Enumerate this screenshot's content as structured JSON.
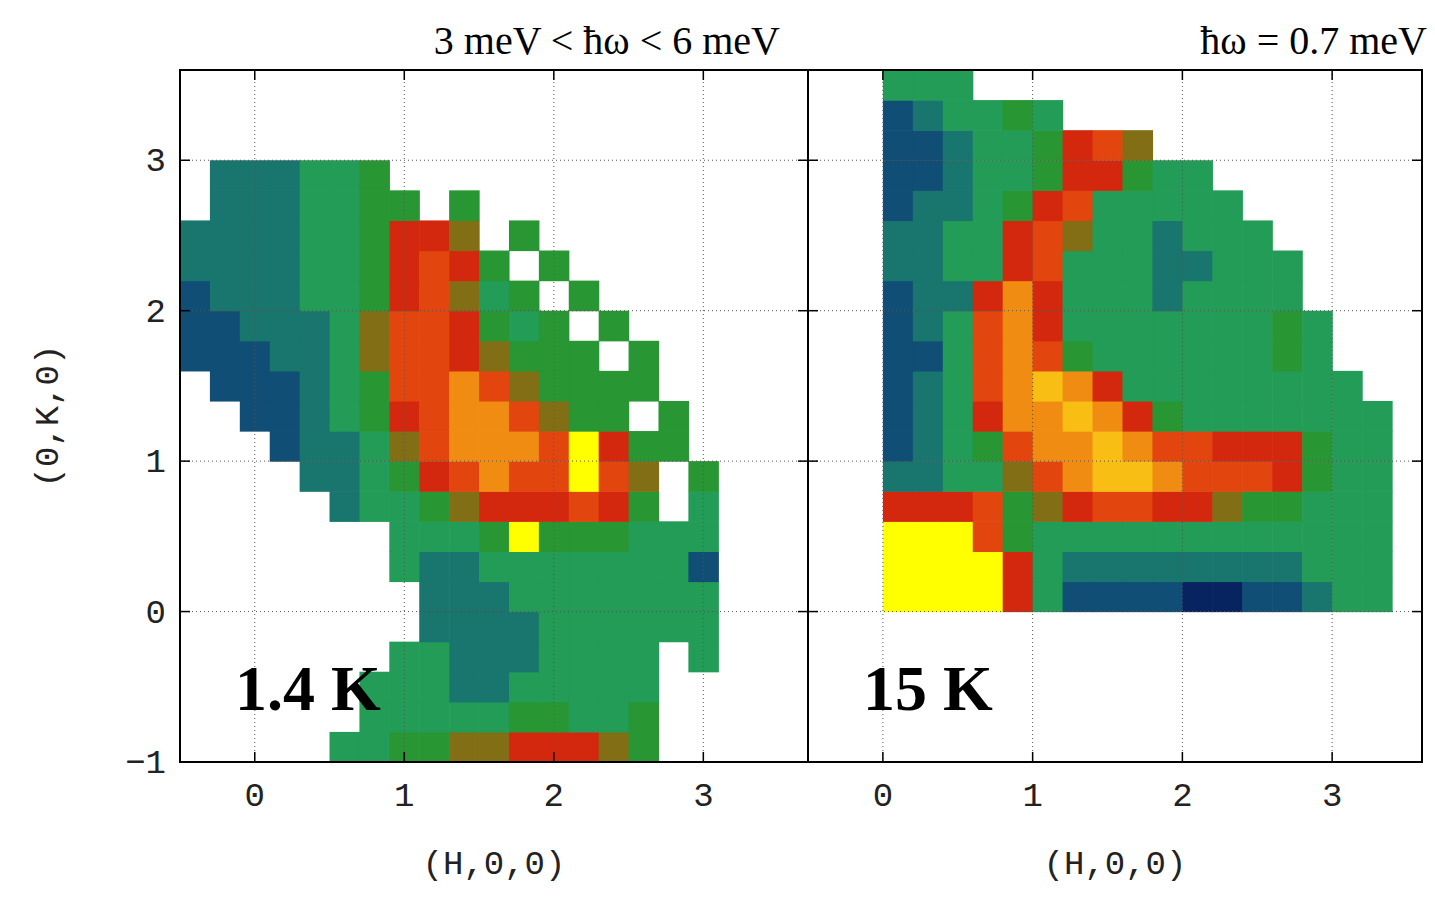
{
  "chart_data": [
    {
      "type": "heatmap",
      "title": "3 meV < ħω  < 6 meV",
      "annotation": "1.4 K",
      "xlabel": "(H,0,0)",
      "ylabel": "(0,K,0)",
      "xlim": [
        -0.5,
        3.7
      ],
      "ylim": [
        -1,
        3.6
      ],
      "xticks": [
        0,
        1,
        2,
        3
      ],
      "yticks": [
        {
          "value": -1,
          "label": "−1"
        },
        0,
        1,
        2,
        3
      ],
      "grid": true,
      "color_range": [
        0,
        10
      ],
      "x": [
        -0.4,
        -0.2,
        0,
        0.2,
        0.4,
        0.6,
        0.8,
        1.0,
        1.2,
        1.4,
        1.6,
        1.8,
        2.0,
        2.2,
        2.4,
        2.6,
        2.8,
        3.0
      ],
      "y": [
        -0.9,
        -0.7,
        -0.5,
        -0.3,
        -0.1,
        0.1,
        0.3,
        0.5,
        0.7,
        0.9,
        1.1,
        1.3,
        1.5,
        1.7,
        1.9,
        2.1,
        2.3,
        2.5,
        2.7,
        2.9
      ],
      "cells": [
        [
          null,
          null,
          null,
          null,
          null,
          3,
          3,
          4,
          4,
          5,
          5,
          6,
          6,
          6,
          5,
          4,
          null,
          null
        ],
        [
          null,
          null,
          null,
          null,
          null,
          null,
          3,
          3,
          3,
          3,
          3,
          4,
          4,
          3,
          3,
          4,
          null,
          null
        ],
        [
          null,
          null,
          null,
          null,
          null,
          null,
          3,
          3,
          3,
          2,
          2,
          3,
          3,
          3,
          3,
          3,
          null,
          null
        ],
        [
          null,
          null,
          null,
          null,
          null,
          null,
          null,
          3,
          3,
          2,
          2,
          2,
          3,
          3,
          3,
          3,
          null,
          3
        ],
        [
          null,
          null,
          null,
          null,
          null,
          null,
          null,
          null,
          2,
          2,
          2,
          2,
          3,
          3,
          3,
          3,
          3,
          3
        ],
        [
          null,
          null,
          null,
          null,
          null,
          null,
          null,
          null,
          2,
          2,
          2,
          3,
          3,
          3,
          3,
          3,
          3,
          3
        ],
        [
          null,
          null,
          null,
          null,
          null,
          null,
          null,
          3,
          2,
          2,
          3,
          3,
          3,
          3,
          3,
          3,
          3,
          1
        ],
        [
          null,
          null,
          null,
          null,
          null,
          null,
          null,
          3,
          3,
          3,
          4,
          10,
          4,
          4,
          4,
          3,
          3,
          3
        ],
        [
          null,
          null,
          null,
          null,
          null,
          2,
          3,
          3,
          4,
          5,
          6,
          6,
          6,
          7,
          6,
          4,
          null,
          3
        ],
        [
          null,
          null,
          null,
          null,
          2,
          2,
          3,
          4,
          6,
          7,
          8,
          7,
          7,
          10,
          7,
          5,
          null,
          4
        ],
        [
          null,
          null,
          null,
          1,
          2,
          2,
          3,
          5,
          7,
          8,
          8,
          8,
          7,
          10,
          6,
          4,
          4,
          null
        ],
        [
          null,
          null,
          1,
          1,
          2,
          3,
          4,
          6,
          7,
          8,
          8,
          7,
          5,
          4,
          4,
          null,
          4,
          null
        ],
        [
          null,
          1,
          1,
          1,
          2,
          3,
          4,
          7,
          7,
          8,
          7,
          5,
          4,
          4,
          4,
          4,
          null,
          null
        ],
        [
          1,
          1,
          1,
          2,
          2,
          3,
          5,
          7,
          7,
          6,
          5,
          4,
          4,
          4,
          null,
          4,
          null,
          null
        ],
        [
          1,
          1,
          2,
          2,
          2,
          3,
          5,
          7,
          7,
          6,
          4,
          3,
          4,
          null,
          4,
          null,
          null,
          null
        ],
        [
          1,
          2,
          2,
          2,
          3,
          3,
          4,
          6,
          7,
          5,
          3,
          4,
          null,
          4,
          null,
          null,
          null,
          null
        ],
        [
          2,
          2,
          2,
          2,
          3,
          3,
          4,
          6,
          7,
          6,
          4,
          null,
          4,
          null,
          null,
          null,
          null,
          null
        ],
        [
          2,
          2,
          2,
          2,
          3,
          3,
          4,
          6,
          6,
          5,
          null,
          4,
          null,
          null,
          null,
          null,
          null,
          null
        ],
        [
          null,
          2,
          2,
          2,
          3,
          3,
          4,
          4,
          null,
          4,
          null,
          null,
          null,
          null,
          null,
          null,
          null,
          null
        ],
        [
          null,
          2,
          2,
          2,
          3,
          3,
          4,
          null,
          null,
          null,
          null,
          null,
          null,
          null,
          null,
          null,
          null,
          null
        ]
      ]
    },
    {
      "type": "heatmap",
      "title": "ħω = 0.7 meV",
      "annotation": "15 K",
      "xlabel": "(H,0,0)",
      "xlim": [
        -0.5,
        3.6
      ],
      "ylim": [
        -1,
        3.6
      ],
      "xticks": [
        0,
        1,
        2,
        3
      ],
      "yticks": [
        -1,
        0,
        1,
        2,
        3
      ],
      "tick_labels": "x",
      "grid": true,
      "color_range": [
        0,
        10
      ],
      "x": [
        0.1,
        0.3,
        0.5,
        0.7,
        0.9,
        1.1,
        1.3,
        1.5,
        1.7,
        1.9,
        2.1,
        2.3,
        2.5,
        2.7,
        2.9,
        3.1,
        3.3
      ],
      "y": [
        0.1,
        0.3,
        0.5,
        0.7,
        0.9,
        1.1,
        1.3,
        1.5,
        1.7,
        1.9,
        2.1,
        2.3,
        2.5,
        2.7,
        2.9,
        3.1,
        3.3,
        3.5
      ],
      "cells": [
        [
          10,
          10,
          10,
          10,
          6,
          3,
          1,
          1,
          1,
          1,
          0,
          0,
          1,
          1,
          2,
          3,
          3
        ],
        [
          10,
          10,
          10,
          10,
          6,
          3,
          2,
          2,
          2,
          2,
          2,
          2,
          2,
          2,
          3,
          3,
          3
        ],
        [
          10,
          10,
          10,
          7,
          4,
          3,
          3,
          3,
          3,
          3,
          3,
          3,
          3,
          3,
          3,
          3,
          3
        ],
        [
          6,
          6,
          6,
          7,
          4,
          5,
          6,
          7,
          7,
          6,
          6,
          5,
          4,
          4,
          3,
          3,
          3
        ],
        [
          2,
          2,
          3,
          3,
          5,
          7,
          8,
          9,
          9,
          8,
          7,
          7,
          7,
          6,
          4,
          3,
          3
        ],
        [
          1,
          2,
          3,
          4,
          7,
          8,
          8,
          9,
          8,
          7,
          7,
          6,
          6,
          6,
          4,
          3,
          3
        ],
        [
          1,
          2,
          3,
          6,
          8,
          8,
          9,
          8,
          6,
          4,
          3,
          3,
          3,
          3,
          3,
          3,
          3
        ],
        [
          1,
          2,
          3,
          7,
          8,
          9,
          8,
          6,
          3,
          3,
          3,
          3,
          3,
          3,
          3,
          3,
          null
        ],
        [
          1,
          1,
          3,
          7,
          8,
          7,
          4,
          3,
          3,
          3,
          3,
          3,
          3,
          4,
          3,
          null,
          null
        ],
        [
          1,
          2,
          3,
          7,
          8,
          6,
          3,
          3,
          3,
          3,
          3,
          3,
          3,
          4,
          3,
          null,
          null
        ],
        [
          1,
          2,
          2,
          6,
          8,
          6,
          3,
          3,
          3,
          2,
          3,
          3,
          3,
          3,
          null,
          null,
          null
        ],
        [
          2,
          2,
          3,
          3,
          6,
          7,
          3,
          3,
          3,
          2,
          2,
          3,
          3,
          3,
          null,
          null,
          null
        ],
        [
          2,
          2,
          3,
          3,
          6,
          7,
          5,
          3,
          3,
          2,
          3,
          3,
          3,
          null,
          null,
          null,
          null
        ],
        [
          1,
          2,
          2,
          3,
          4,
          6,
          7,
          3,
          3,
          3,
          3,
          3,
          null,
          null,
          null,
          null,
          null
        ],
        [
          1,
          1,
          2,
          3,
          3,
          4,
          6,
          6,
          4,
          3,
          3,
          null,
          null,
          null,
          null,
          null,
          null
        ],
        [
          1,
          1,
          2,
          3,
          3,
          4,
          6,
          7,
          5,
          null,
          null,
          null,
          null,
          null,
          null,
          null,
          null
        ],
        [
          1,
          2,
          3,
          3,
          4,
          3,
          null,
          null,
          null,
          null,
          null,
          null,
          null,
          null,
          null,
          null,
          null
        ],
        [
          3,
          3,
          3,
          null,
          null,
          null,
          null,
          null,
          null,
          null,
          null,
          null,
          null,
          null,
          null,
          null,
          null
        ]
      ]
    }
  ]
}
